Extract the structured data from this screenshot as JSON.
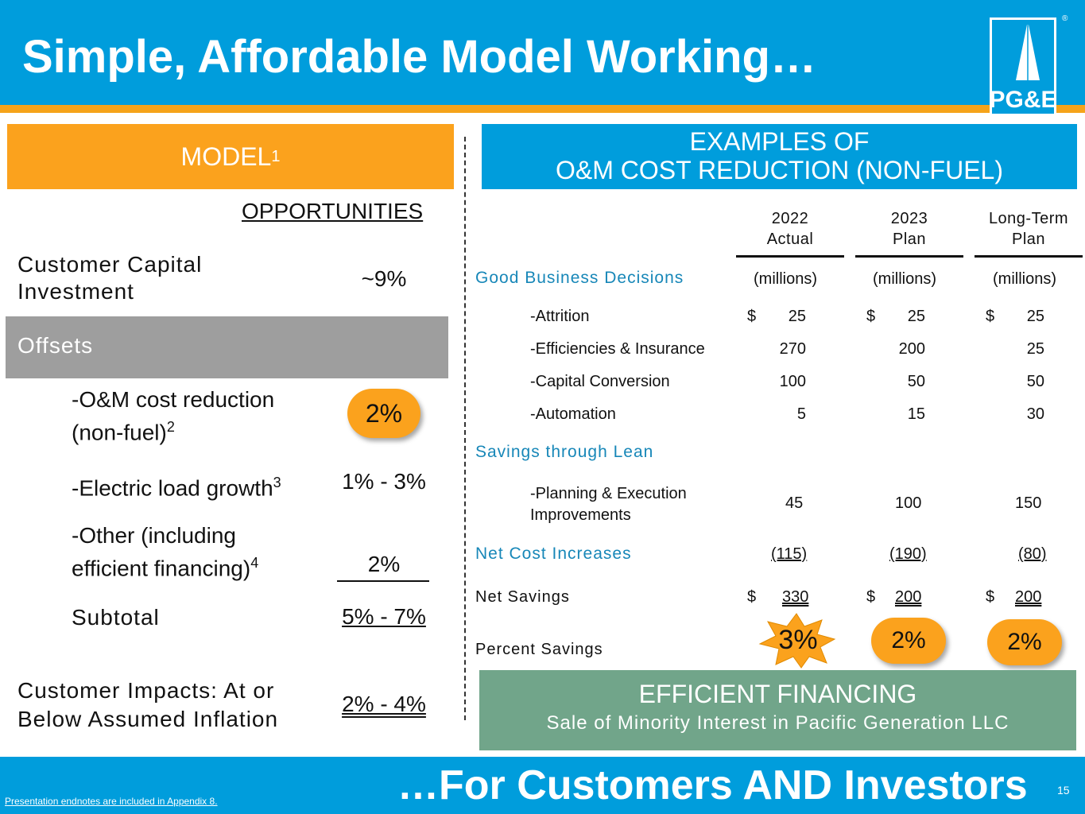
{
  "header": {
    "title": "Simple, Affordable Model Working…",
    "logo_text": "PG&E",
    "registered_mark": "®"
  },
  "footer": {
    "tagline": "…For Customers AND Investors",
    "page_number": "15",
    "endnote_link": "Presentation endnotes are included in Appendix 8."
  },
  "model": {
    "title": "MODEL",
    "title_sup": "1",
    "opportunities_header": "OPPORTUNITIES",
    "capital_label_1": "Customer Capital",
    "capital_label_2": "Investment",
    "capital_value": "~9%",
    "offsets_label": "Offsets",
    "om_label_1": "-O&M cost reduction",
    "om_label_2": "(non-fuel)",
    "om_sup": "2",
    "om_value": "2%",
    "load_label": "-Electric load growth",
    "load_sup": "3",
    "load_value": "1% - 3%",
    "other_label_1": "-Other (including",
    "other_label_2": "efficient financing)",
    "other_sup": "4",
    "other_value": "2%",
    "subtotal_label": "Subtotal",
    "subtotal_value": "5% - 7%",
    "impact_label_1": "Customer Impacts: At or",
    "impact_label_2": "Below Assumed Inflation",
    "impact_value": "2% - 4%"
  },
  "examples": {
    "title_line1": "EXAMPLES OF",
    "title_line2": "O&M COST REDUCTION (NON-FUEL)",
    "columns": [
      {
        "line1": "2022",
        "line2": "Actual"
      },
      {
        "line1": "2023",
        "line2": "Plan"
      },
      {
        "line1": "Long-Term",
        "line2": "Plan"
      }
    ],
    "units": "(millions)",
    "currency": "$",
    "good_business_label": "Good Business Decisions",
    "lean_label": "Savings through Lean",
    "net_cost_label": "Net Cost Increases",
    "net_savings_label": "Net Savings",
    "percent_savings_label": "Percent Savings",
    "rows": {
      "attrition": {
        "label": "-Attrition",
        "values": [
          "25",
          "25",
          "25"
        ]
      },
      "efficiencies": {
        "label": "-Efficiencies & Insurance",
        "values": [
          "270",
          "200",
          "25"
        ]
      },
      "capital": {
        "label": "-Capital Conversion",
        "values": [
          "100",
          "50",
          "50"
        ]
      },
      "automation": {
        "label": "-Automation",
        "values": [
          "5",
          "15",
          "30"
        ]
      },
      "planning": {
        "label_1": "-Planning & Execution",
        "label_2": "Improvements",
        "values": [
          "45",
          "100",
          "150"
        ]
      },
      "net_cost": {
        "values": [
          "(115)",
          "(190)",
          "(80)"
        ]
      },
      "net_savings": {
        "values": [
          "330",
          "200",
          "200"
        ]
      },
      "percent": {
        "values": [
          "3%",
          "2%",
          "2%"
        ]
      }
    }
  },
  "financing": {
    "title": "EFFICIENT FINANCING",
    "subtitle": "Sale of Minority Interest in Pacific Generation LLC"
  },
  "colors": {
    "header_blue": "#009ddc",
    "orange": "#fba21d",
    "grey": "#9e9e9e",
    "green": "#71a58a",
    "label_blue": "#1787b8"
  }
}
